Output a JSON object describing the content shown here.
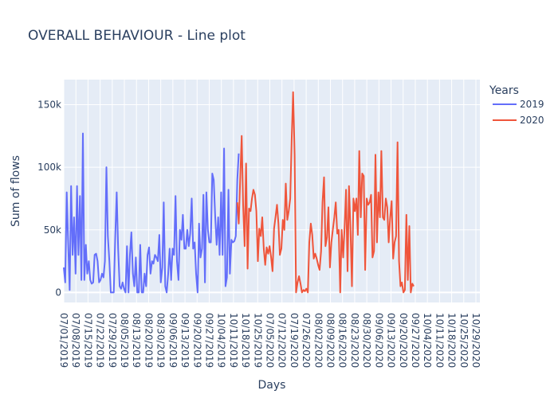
{
  "chart_data": {
    "type": "line",
    "title": "OVERALL BEHAVIOUR - Line plot",
    "xlabel": "Days",
    "ylabel": "Sum of flows",
    "ylim": [
      -8000,
      170000
    ],
    "y_ticks": [
      0,
      50000,
      100000,
      150000
    ],
    "y_tick_labels": [
      "0",
      "50k",
      "100k",
      "150k"
    ],
    "x_tick_labels": [
      "07/01/2019",
      "07/08/2019",
      "07/15/2019",
      "07/22/2019",
      "07/29/2019",
      "08/05/2019",
      "08/13/2019",
      "08/20/2019",
      "08/30/2019",
      "09/06/2019",
      "09/13/2019",
      "09/20/2019",
      "09/27/2019",
      "10/04/2019",
      "10/11/2019",
      "10/18/2019",
      "10/25/2019",
      "07/05/2020",
      "07/12/2020",
      "07/19/2020",
      "07/26/2020",
      "08/02/2020",
      "08/09/2020",
      "08/16/2020",
      "08/23/2020",
      "08/30/2020",
      "09/06/2020",
      "09/13/2020",
      "09/20/2020",
      "09/27/2020",
      "10/04/2020",
      "10/11/2020",
      "10/18/2020",
      "10/25/2020",
      "10/29/2020"
    ],
    "x_index_range": [
      0,
      283
    ],
    "grid": true,
    "legend": {
      "title": "Years",
      "placement": "top-right"
    },
    "series": [
      {
        "name": "2019",
        "color": "#636efa",
        "start_index": 0,
        "values": [
          20000,
          8000,
          80000,
          40000,
          2000,
          85000,
          30000,
          60000,
          15000,
          85000,
          30000,
          77000,
          10000,
          127000,
          10000,
          38000,
          15000,
          25000,
          10000,
          7000,
          8000,
          30000,
          31000,
          25000,
          8000,
          10000,
          15000,
          12000,
          25000,
          100000,
          45000,
          25000,
          0,
          0,
          0,
          45000,
          80000,
          35000,
          5000,
          3000,
          8000,
          3000,
          0,
          37000,
          0,
          30000,
          48000,
          15000,
          5000,
          28000,
          0,
          0,
          38000,
          0,
          0,
          15000,
          5000,
          30000,
          36000,
          15000,
          25000,
          23000,
          30000,
          28000,
          25000,
          46000,
          8000,
          20000,
          72000,
          5000,
          0,
          15000,
          35000,
          10000,
          35000,
          30000,
          77000,
          25000,
          10000,
          50000,
          42000,
          62000,
          35000,
          35000,
          50000,
          37000,
          47000,
          75000,
          35000,
          40000,
          15000,
          0,
          55000,
          28000,
          35000,
          78000,
          8000,
          80000,
          50000,
          40000,
          40000,
          95000,
          90000,
          60000,
          38000,
          60000,
          30000,
          80000,
          30000,
          115000,
          5000,
          12000,
          82000,
          15000,
          42000,
          40000,
          41000,
          45000,
          90000,
          111000
        ]
      },
      {
        "name": "2020",
        "color": "#ef553b",
        "start_index": 118,
        "values": [
          72000,
          55000,
          90000,
          125000,
          70000,
          37000,
          103000,
          19000,
          67000,
          65000,
          75000,
          82000,
          78000,
          65000,
          25000,
          51000,
          45000,
          60000,
          35000,
          22000,
          36000,
          31000,
          37000,
          28000,
          17000,
          51000,
          60000,
          70000,
          55000,
          30000,
          35000,
          58000,
          50000,
          87000,
          58000,
          65000,
          75000,
          122000,
          160000,
          110000,
          0,
          8000,
          13000,
          7000,
          0,
          2000,
          1000,
          3000,
          0,
          40000,
          55000,
          46000,
          27000,
          31000,
          27000,
          22000,
          18000,
          33000,
          72000,
          92000,
          37000,
          44000,
          68000,
          20000,
          40000,
          50000,
          60000,
          72000,
          47000,
          50000,
          0,
          50000,
          28000,
          52000,
          82000,
          17000,
          85000,
          50000,
          5000,
          75000,
          65000,
          75000,
          46000,
          113000,
          60000,
          95000,
          93000,
          18000,
          75000,
          70000,
          72000,
          78000,
          28000,
          33000,
          110000,
          40000,
          80000,
          60000,
          113000,
          60000,
          58000,
          75000,
          68000,
          40000,
          60000,
          73000,
          27000,
          40000,
          45000,
          120000,
          25000,
          5000,
          8000,
          0,
          2000,
          62000,
          10000,
          53000,
          0,
          7000,
          5000
        ]
      }
    ]
  }
}
